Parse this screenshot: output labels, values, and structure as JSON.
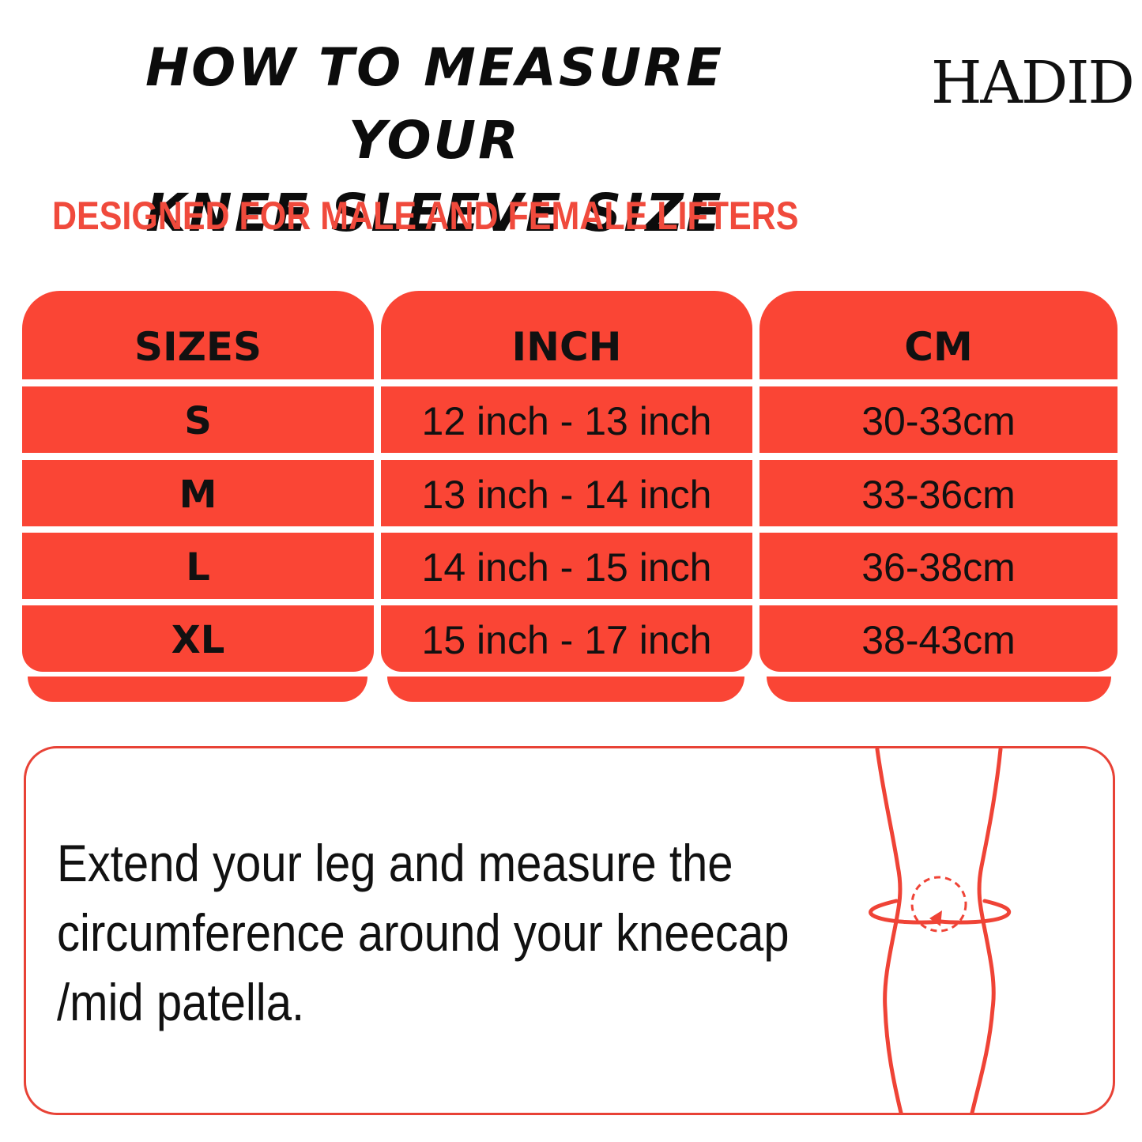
{
  "title": {
    "line1": "HOW TO MEASURE YOUR",
    "line2": "KNEE SLEEVE SIZE"
  },
  "brand": "HADID",
  "subtitle": "DESIGNED FOR MALE AND FEMALE LIFTERS",
  "table": {
    "headers": [
      "SIZES",
      "INCH",
      "CM"
    ],
    "rows": [
      {
        "size": "S",
        "inch": "12 inch - 13 inch",
        "cm": "30-33cm"
      },
      {
        "size": "M",
        "inch": "13 inch - 14 inch",
        "cm": "33-36cm"
      },
      {
        "size": "L",
        "inch": "14 inch - 15 inch",
        "cm": "36-38cm"
      },
      {
        "size": "XL",
        "inch": "15 inch - 17 inch",
        "cm": "38-43cm"
      }
    ]
  },
  "instructions": {
    "line1": "Extend your leg and measure the",
    "line2": "circumference around your kneecap",
    "line3": "/mid patella."
  },
  "colors": {
    "accent": "#fa4535",
    "subtitle": "#f04a3c",
    "text": "#111111"
  },
  "icons": [
    "knee-measure-icon",
    "rotate-arrow-icon"
  ]
}
